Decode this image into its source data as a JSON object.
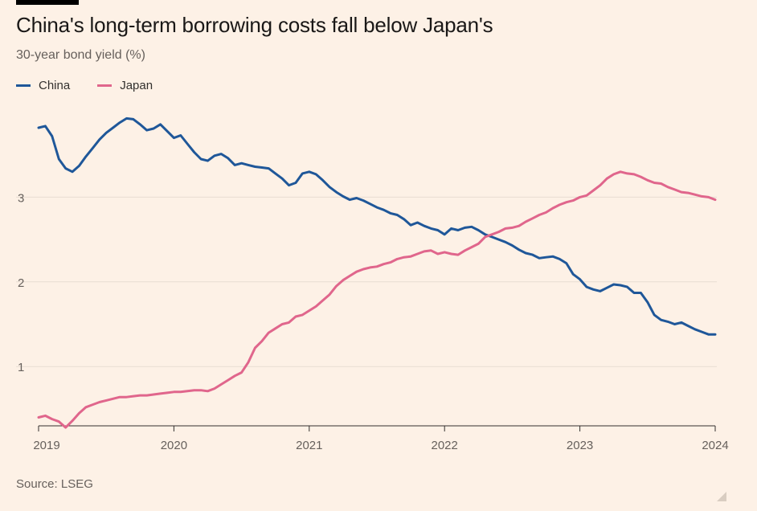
{
  "header": {
    "title": "China's long-term borrowing costs fall below Japan's",
    "subtitle": "30-year bond yield (%)"
  },
  "footer": {
    "source": "Source: LSEG"
  },
  "colors": {
    "china": "#1f5799",
    "japan": "#e0668c",
    "grid": "#e8ddd2",
    "axis": "#33302e"
  },
  "chart_data": {
    "type": "line",
    "title": "China's long-term borrowing costs fall below Japan's",
    "ylabel": "30-year bond yield (%)",
    "xlabel": "",
    "xlim": [
      2019.0,
      2024.0
    ],
    "ylim": [
      0.3,
      4.0
    ],
    "x_ticks": [
      2019,
      2020,
      2021,
      2022,
      2023,
      2024
    ],
    "x_tick_labels": [
      "2019",
      "2020",
      "2021",
      "2022",
      "2023",
      "2024"
    ],
    "y_ticks": [
      1,
      2,
      3
    ],
    "y_tick_labels": [
      "1",
      "2",
      "3"
    ],
    "grid": true,
    "legend_position": "top-left",
    "series": [
      {
        "name": "China",
        "color": "#1f5799",
        "x": [
          2019.0,
          2019.05,
          2019.1,
          2019.15,
          2019.2,
          2019.25,
          2019.3,
          2019.35,
          2019.4,
          2019.45,
          2019.5,
          2019.55,
          2019.6,
          2019.65,
          2019.7,
          2019.75,
          2019.8,
          2019.85,
          2019.9,
          2019.95,
          2020.0,
          2020.05,
          2020.1,
          2020.15,
          2020.2,
          2020.25,
          2020.3,
          2020.35,
          2020.4,
          2020.45,
          2020.5,
          2020.55,
          2020.6,
          2020.65,
          2020.7,
          2020.75,
          2020.8,
          2020.85,
          2020.9,
          2020.95,
          2021.0,
          2021.05,
          2021.1,
          2021.15,
          2021.2,
          2021.25,
          2021.3,
          2021.35,
          2021.4,
          2021.45,
          2021.5,
          2021.55,
          2021.6,
          2021.65,
          2021.7,
          2021.75,
          2021.8,
          2021.85,
          2021.9,
          2021.95,
          2022.0,
          2022.05,
          2022.1,
          2022.15,
          2022.2,
          2022.25,
          2022.3,
          2022.35,
          2022.4,
          2022.45,
          2022.5,
          2022.55,
          2022.6,
          2022.65,
          2022.7,
          2022.75,
          2022.8,
          2022.85,
          2022.9,
          2022.95,
          2023.0,
          2023.05,
          2023.1,
          2023.15,
          2023.2,
          2023.25,
          2023.3,
          2023.35,
          2023.4,
          2023.45,
          2023.5,
          2023.55,
          2023.6,
          2023.65,
          2023.7,
          2023.75,
          2023.8,
          2023.85,
          2023.9,
          2023.95,
          2024.0
        ],
        "values": [
          3.82,
          3.84,
          3.72,
          3.45,
          3.34,
          3.3,
          3.37,
          3.48,
          3.58,
          3.68,
          3.76,
          3.82,
          3.88,
          3.93,
          3.92,
          3.86,
          3.79,
          3.81,
          3.86,
          3.78,
          3.7,
          3.73,
          3.63,
          3.53,
          3.45,
          3.43,
          3.49,
          3.51,
          3.46,
          3.38,
          3.4,
          3.38,
          3.36,
          3.35,
          3.34,
          3.28,
          3.22,
          3.14,
          3.17,
          3.28,
          3.3,
          3.27,
          3.2,
          3.12,
          3.06,
          3.01,
          2.97,
          2.99,
          2.96,
          2.92,
          2.88,
          2.85,
          2.81,
          2.79,
          2.74,
          2.67,
          2.7,
          2.66,
          2.63,
          2.61,
          2.56,
          2.63,
          2.61,
          2.64,
          2.65,
          2.61,
          2.56,
          2.53,
          2.5,
          2.47,
          2.43,
          2.38,
          2.34,
          2.32,
          2.28,
          2.29,
          2.3,
          2.27,
          2.22,
          2.09,
          2.03,
          1.94,
          1.91,
          1.89,
          1.93,
          1.97,
          1.96,
          1.94,
          1.87,
          1.87,
          1.76,
          1.61,
          1.55,
          1.53,
          1.5,
          1.52,
          1.48,
          1.44,
          1.41,
          1.38,
          1.38
        ]
      },
      {
        "name": "Japan",
        "color": "#e0668c",
        "x": [
          2019.0,
          2019.05,
          2019.1,
          2019.15,
          2019.2,
          2019.25,
          2019.3,
          2019.35,
          2019.4,
          2019.45,
          2019.5,
          2019.55,
          2019.6,
          2019.65,
          2019.7,
          2019.75,
          2019.8,
          2019.85,
          2019.9,
          2019.95,
          2020.0,
          2020.05,
          2020.1,
          2020.15,
          2020.2,
          2020.25,
          2020.3,
          2020.35,
          2020.4,
          2020.45,
          2020.5,
          2020.55,
          2020.6,
          2020.65,
          2020.7,
          2020.75,
          2020.8,
          2020.85,
          2020.9,
          2020.95,
          2021.0,
          2021.05,
          2021.1,
          2021.15,
          2021.2,
          2021.25,
          2021.3,
          2021.35,
          2021.4,
          2021.45,
          2021.5,
          2021.55,
          2021.6,
          2021.65,
          2021.7,
          2021.75,
          2021.8,
          2021.85,
          2021.9,
          2021.95,
          2022.0,
          2022.05,
          2022.1,
          2022.15,
          2022.2,
          2022.25,
          2022.3,
          2022.35,
          2022.4,
          2022.45,
          2022.5,
          2022.55,
          2022.6,
          2022.65,
          2022.7,
          2022.75,
          2022.8,
          2022.85,
          2022.9,
          2022.95,
          2023.0,
          2023.05,
          2023.1,
          2023.15,
          2023.2,
          2023.25,
          2023.3,
          2023.35,
          2023.4,
          2023.45,
          2023.5,
          2023.55,
          2023.6,
          2023.65,
          2023.7,
          2023.75,
          2023.8,
          2023.85,
          2023.9,
          2023.95,
          2024.0
        ],
        "values": [
          0.4,
          0.42,
          0.38,
          0.35,
          0.28,
          0.36,
          0.45,
          0.52,
          0.55,
          0.58,
          0.6,
          0.62,
          0.64,
          0.64,
          0.65,
          0.66,
          0.66,
          0.67,
          0.68,
          0.69,
          0.7,
          0.7,
          0.71,
          0.72,
          0.72,
          0.71,
          0.74,
          0.79,
          0.84,
          0.89,
          0.93,
          1.05,
          1.22,
          1.3,
          1.4,
          1.45,
          1.5,
          1.52,
          1.59,
          1.61,
          1.66,
          1.71,
          1.78,
          1.85,
          1.95,
          2.02,
          2.07,
          2.12,
          2.15,
          2.17,
          2.18,
          2.21,
          2.23,
          2.27,
          2.29,
          2.3,
          2.33,
          2.36,
          2.37,
          2.33,
          2.35,
          2.33,
          2.32,
          2.37,
          2.41,
          2.45,
          2.53,
          2.56,
          2.59,
          2.63,
          2.64,
          2.66,
          2.71,
          2.75,
          2.79,
          2.82,
          2.87,
          2.91,
          2.94,
          2.96,
          3.0,
          3.02,
          3.08,
          3.14,
          3.22,
          3.27,
          3.3,
          3.28,
          3.27,
          3.24,
          3.2,
          3.17,
          3.16,
          3.12,
          3.09,
          3.06,
          3.05,
          3.03,
          3.01,
          3.0,
          2.97
        ]
      }
    ]
  }
}
